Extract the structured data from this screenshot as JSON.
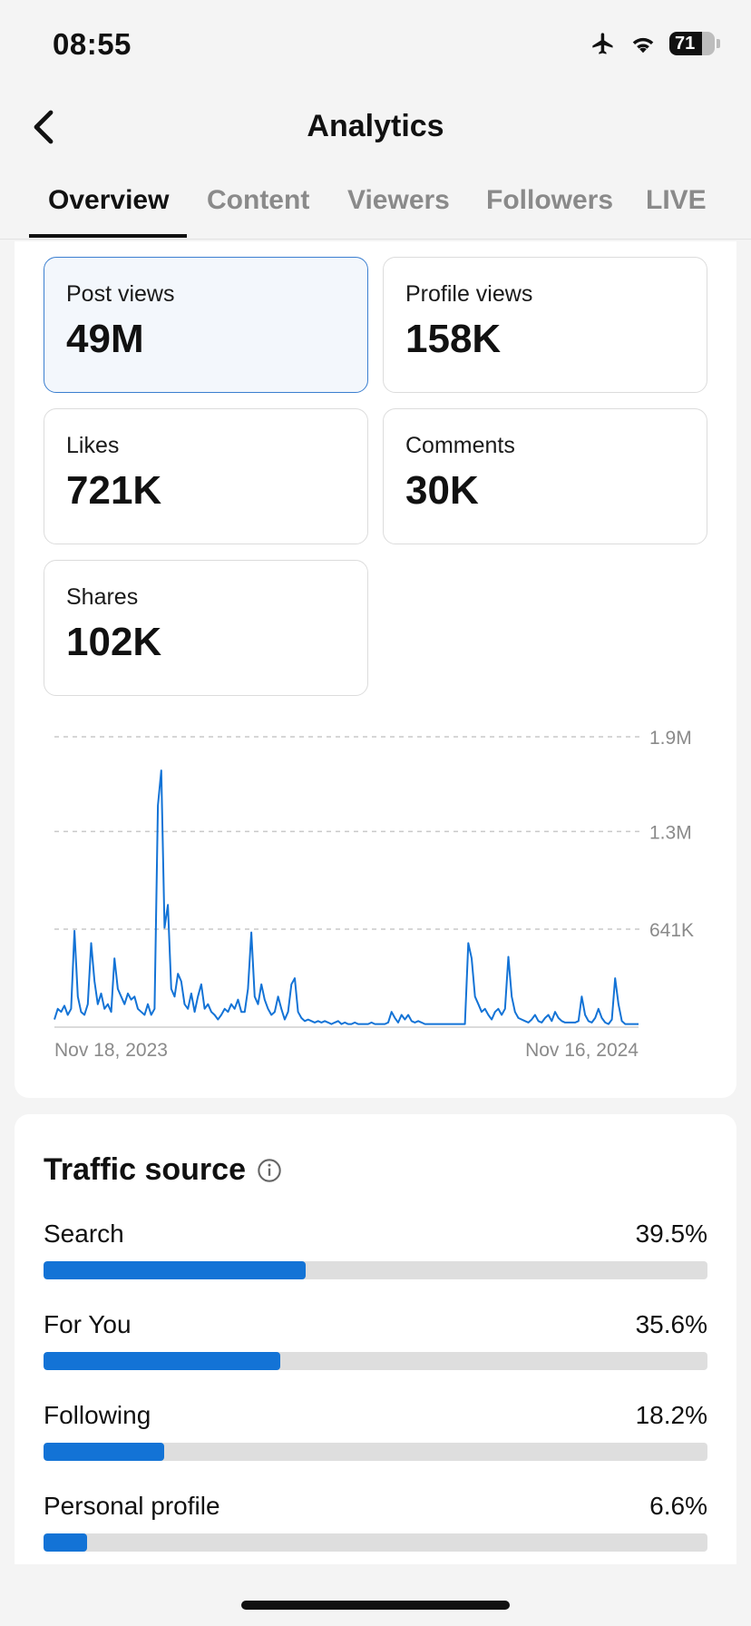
{
  "status_bar": {
    "time": "08:55",
    "battery": "71",
    "icons": [
      "airplane-icon",
      "wifi-icon",
      "battery-icon"
    ]
  },
  "header": {
    "title": "Analytics",
    "back_icon": "chevron-left-icon"
  },
  "tabs": [
    {
      "label": "Overview",
      "active": true
    },
    {
      "label": "Content",
      "active": false
    },
    {
      "label": "Viewers",
      "active": false
    },
    {
      "label": "Followers",
      "active": false
    },
    {
      "label": "LIVE",
      "active": false
    }
  ],
  "metrics": [
    {
      "label": "Post views",
      "value": "49M",
      "selected": true
    },
    {
      "label": "Profile views",
      "value": "158K",
      "selected": false
    },
    {
      "label": "Likes",
      "value": "721K",
      "selected": false
    },
    {
      "label": "Comments",
      "value": "30K",
      "selected": false
    },
    {
      "label": "Shares",
      "value": "102K",
      "selected": false
    }
  ],
  "chart_data": {
    "type": "line",
    "title": "",
    "xlabel": "",
    "ylabel": "",
    "x_start_label": "Nov 18, 2023",
    "x_end_label": "Nov 16, 2024",
    "y_ticks": [
      "641K",
      "1.3M",
      "1.9M"
    ],
    "ylim": [
      0,
      1.9
    ],
    "grid": "dashed horizontal",
    "series": [
      {
        "color": "#1373d6",
        "values": [
          0.05,
          0.12,
          0.1,
          0.14,
          0.08,
          0.12,
          0.63,
          0.2,
          0.1,
          0.08,
          0.15,
          0.55,
          0.3,
          0.15,
          0.22,
          0.12,
          0.15,
          0.1,
          0.45,
          0.25,
          0.2,
          0.15,
          0.22,
          0.18,
          0.2,
          0.12,
          0.1,
          0.08,
          0.15,
          0.08,
          0.12,
          1.45,
          1.68,
          0.65,
          0.8,
          0.25,
          0.2,
          0.35,
          0.3,
          0.15,
          0.12,
          0.22,
          0.1,
          0.2,
          0.28,
          0.12,
          0.15,
          0.1,
          0.08,
          0.05,
          0.08,
          0.12,
          0.1,
          0.15,
          0.12,
          0.18,
          0.1,
          0.1,
          0.25,
          0.62,
          0.2,
          0.15,
          0.28,
          0.18,
          0.12,
          0.08,
          0.1,
          0.2,
          0.12,
          0.05,
          0.1,
          0.28,
          0.32,
          0.1,
          0.06,
          0.04,
          0.05,
          0.04,
          0.03,
          0.04,
          0.03,
          0.04,
          0.03,
          0.02,
          0.03,
          0.04,
          0.02,
          0.03,
          0.02,
          0.02,
          0.03,
          0.02,
          0.02,
          0.02,
          0.02,
          0.03,
          0.02,
          0.02,
          0.02,
          0.02,
          0.03,
          0.1,
          0.06,
          0.03,
          0.08,
          0.05,
          0.08,
          0.04,
          0.03,
          0.04,
          0.03,
          0.02,
          0.02,
          0.02,
          0.02,
          0.02,
          0.02,
          0.02,
          0.02,
          0.02,
          0.02,
          0.02,
          0.02,
          0.02,
          0.55,
          0.45,
          0.2,
          0.15,
          0.1,
          0.12,
          0.08,
          0.05,
          0.1,
          0.12,
          0.08,
          0.12,
          0.46,
          0.2,
          0.1,
          0.06,
          0.05,
          0.04,
          0.03,
          0.05,
          0.08,
          0.04,
          0.03,
          0.06,
          0.08,
          0.04,
          0.1,
          0.06,
          0.04,
          0.03,
          0.03,
          0.03,
          0.03,
          0.04,
          0.2,
          0.08,
          0.04,
          0.03,
          0.06,
          0.12,
          0.06,
          0.03,
          0.02,
          0.05,
          0.32,
          0.15,
          0.04,
          0.02,
          0.02,
          0.02,
          0.02,
          0.02
        ]
      }
    ]
  },
  "traffic": {
    "title": "Traffic source",
    "info_icon": "info-circle-icon",
    "sources": [
      {
        "label": "Search",
        "percent_label": "39.5%",
        "value": 39.5
      },
      {
        "label": "For You",
        "percent_label": "35.6%",
        "value": 35.6
      },
      {
        "label": "Following",
        "percent_label": "18.2%",
        "value": 18.2
      },
      {
        "label": "Personal profile",
        "percent_label": "6.6%",
        "value": 6.6
      }
    ]
  }
}
